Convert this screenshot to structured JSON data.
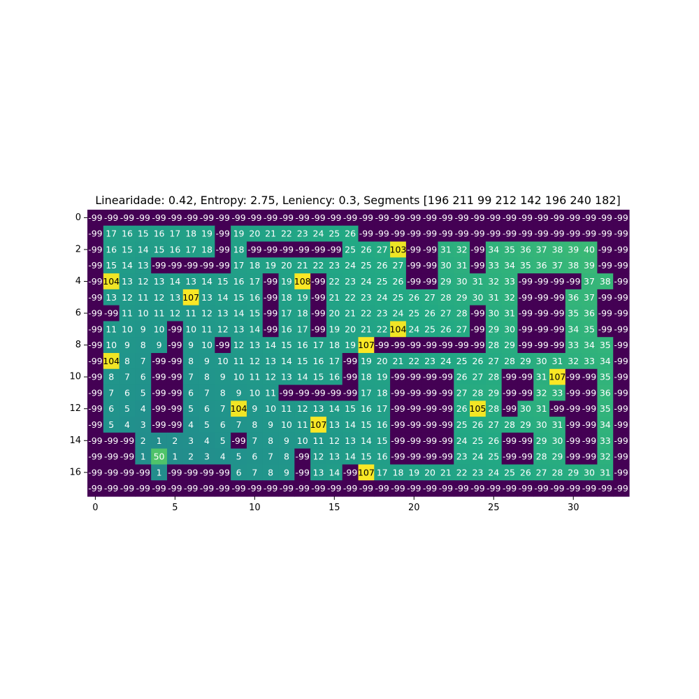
{
  "chart_data": {
    "type": "heatmap",
    "title": "Linearidade: 0.42, Entropy: 2.75, Leniency: 0.3, Segments [196 211  99 212 142 196 240 182]",
    "xlabel": "",
    "ylabel": "",
    "xticks": [
      0,
      5,
      10,
      15,
      20,
      25,
      30
    ],
    "yticks": [
      0,
      2,
      4,
      6,
      8,
      10,
      12,
      14,
      16
    ],
    "colormap": "viridis",
    "value_range": [
      -99,
      108
    ],
    "annotated": true,
    "grid": false,
    "rows": [
      [
        -99,
        -99,
        -99,
        -99,
        -99,
        -99,
        -99,
        -99,
        -99,
        -99,
        -99,
        -99,
        -99,
        -99,
        -99,
        -99,
        -99,
        -99,
        -99,
        -99,
        -99,
        -99,
        -99,
        -99,
        -99,
        -99,
        -99,
        -99,
        -99,
        -99,
        -99,
        -99,
        -99,
        -99
      ],
      [
        -99,
        17,
        16,
        15,
        16,
        17,
        18,
        19,
        -99,
        19,
        20,
        21,
        22,
        23,
        24,
        25,
        26,
        -99,
        -99,
        -99,
        -99,
        -99,
        -99,
        -99,
        -99,
        -99,
        -99,
        -99,
        -99,
        -99,
        -99,
        -99,
        -99,
        -99
      ],
      [
        -99,
        16,
        15,
        14,
        15,
        16,
        17,
        18,
        -99,
        18,
        -99,
        -99,
        -99,
        -99,
        -99,
        -99,
        25,
        26,
        27,
        103,
        -99,
        -99,
        31,
        32,
        -99,
        34,
        35,
        36,
        37,
        38,
        39,
        40,
        -99,
        -99
      ],
      [
        -99,
        15,
        14,
        13,
        -99,
        -99,
        -99,
        -99,
        -99,
        17,
        18,
        19,
        20,
        21,
        22,
        23,
        24,
        25,
        26,
        27,
        -99,
        -99,
        30,
        31,
        -99,
        33,
        34,
        35,
        36,
        37,
        38,
        39,
        -99,
        -99
      ],
      [
        -99,
        104,
        13,
        12,
        13,
        14,
        13,
        14,
        15,
        16,
        17,
        -99,
        19,
        108,
        -99,
        22,
        23,
        24,
        25,
        26,
        -99,
        -99,
        29,
        30,
        31,
        32,
        33,
        -99,
        -99,
        -99,
        -99,
        37,
        38,
        -99
      ],
      [
        -99,
        13,
        12,
        11,
        12,
        13,
        107,
        13,
        14,
        15,
        16,
        -99,
        18,
        19,
        -99,
        21,
        22,
        23,
        24,
        25,
        26,
        27,
        28,
        29,
        30,
        31,
        32,
        -99,
        -99,
        -99,
        36,
        37,
        -99,
        -99
      ],
      [
        -99,
        -99,
        11,
        10,
        11,
        12,
        11,
        12,
        13,
        14,
        15,
        -99,
        17,
        18,
        -99,
        20,
        21,
        22,
        23,
        24,
        25,
        26,
        27,
        28,
        -99,
        30,
        31,
        -99,
        -99,
        -99,
        35,
        36,
        -99,
        -99
      ],
      [
        -99,
        11,
        10,
        9,
        10,
        -99,
        10,
        11,
        12,
        13,
        14,
        -99,
        16,
        17,
        -99,
        19,
        20,
        21,
        22,
        104,
        24,
        25,
        26,
        27,
        -99,
        29,
        30,
        -99,
        -99,
        -99,
        34,
        35,
        -99,
        -99
      ],
      [
        -99,
        10,
        9,
        8,
        9,
        -99,
        9,
        10,
        -99,
        12,
        13,
        14,
        15,
        16,
        17,
        18,
        19,
        107,
        -99,
        -99,
        -99,
        -99,
        -99,
        -99,
        -99,
        28,
        29,
        -99,
        -99,
        -99,
        33,
        34,
        35,
        -99
      ],
      [
        -99,
        104,
        8,
        7,
        -99,
        -99,
        8,
        9,
        10,
        11,
        12,
        13,
        14,
        15,
        16,
        17,
        -99,
        19,
        20,
        21,
        22,
        23,
        24,
        25,
        26,
        27,
        28,
        29,
        30,
        31,
        32,
        33,
        34,
        -99
      ],
      [
        -99,
        8,
        7,
        6,
        -99,
        -99,
        7,
        8,
        9,
        10,
        11,
        12,
        13,
        14,
        15,
        16,
        -99,
        18,
        19,
        -99,
        -99,
        -99,
        -99,
        26,
        27,
        28,
        -99,
        -99,
        31,
        107,
        -99,
        -99,
        35,
        -99
      ],
      [
        -99,
        7,
        6,
        5,
        -99,
        -99,
        6,
        7,
        8,
        9,
        10,
        11,
        -99,
        -99,
        -99,
        -99,
        -99,
        17,
        18,
        -99,
        -99,
        -99,
        -99,
        27,
        28,
        29,
        -99,
        -99,
        32,
        33,
        -99,
        -99,
        36,
        -99
      ],
      [
        -99,
        6,
        5,
        4,
        -99,
        -99,
        5,
        6,
        7,
        104,
        9,
        10,
        11,
        12,
        13,
        14,
        15,
        16,
        17,
        -99,
        -99,
        -99,
        -99,
        26,
        105,
        28,
        -99,
        30,
        31,
        -99,
        -99,
        -99,
        35,
        -99
      ],
      [
        -99,
        5,
        4,
        3,
        -99,
        -99,
        4,
        5,
        6,
        7,
        8,
        9,
        10,
        11,
        107,
        13,
        14,
        15,
        16,
        -99,
        -99,
        -99,
        -99,
        25,
        26,
        27,
        28,
        29,
        30,
        31,
        -99,
        -99,
        34,
        -99
      ],
      [
        -99,
        -99,
        -99,
        2,
        1,
        2,
        3,
        4,
        5,
        -99,
        7,
        8,
        9,
        10,
        11,
        12,
        13,
        14,
        15,
        -99,
        -99,
        -99,
        -99,
        24,
        25,
        26,
        -99,
        -99,
        29,
        30,
        -99,
        -99,
        33,
        -99
      ],
      [
        -99,
        -99,
        -99,
        1,
        50,
        1,
        2,
        3,
        4,
        5,
        6,
        7,
        8,
        -99,
        12,
        13,
        14,
        15,
        16,
        -99,
        -99,
        -99,
        -99,
        23,
        24,
        25,
        -99,
        -99,
        28,
        29,
        -99,
        -99,
        32,
        -99
      ],
      [
        -99,
        -99,
        -99,
        -99,
        1,
        -99,
        -99,
        -99,
        -99,
        6,
        7,
        8,
        9,
        -99,
        13,
        14,
        -99,
        107,
        17,
        18,
        19,
        20,
        21,
        22,
        23,
        24,
        25,
        26,
        27,
        28,
        29,
        30,
        31,
        -99
      ],
      [
        -99,
        -99,
        -99,
        -99,
        -99,
        -99,
        -99,
        -99,
        -99,
        -99,
        -99,
        -99,
        -99,
        -99,
        -99,
        -99,
        -99,
        -99,
        -99,
        -99,
        -99,
        -99,
        -99,
        -99,
        -99,
        -99,
        -99,
        -99,
        -99,
        -99,
        -99,
        -99,
        -99,
        -99
      ]
    ]
  }
}
